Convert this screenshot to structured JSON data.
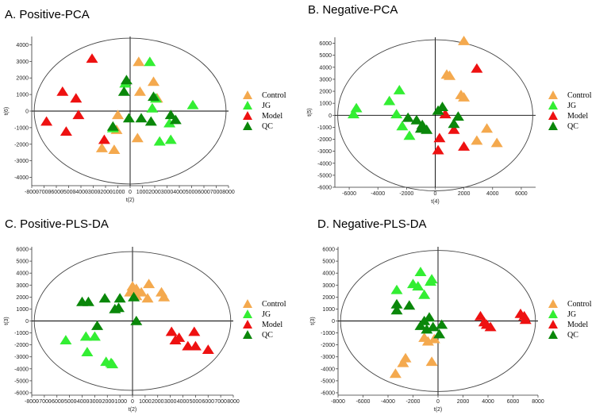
{
  "colors": {
    "Control": "#f4a94e",
    "JG": "#33ee33",
    "Model": "#ee1111",
    "QC": "#0a870a"
  },
  "chart_data": [
    {
      "type": "scatter",
      "title": "A. Positive-PCA",
      "xlabel": "t(2)",
      "ylabel": "t(6)",
      "xlim": [
        -8000,
        8000
      ],
      "ylim": [
        -4500,
        4500
      ],
      "xticks": [
        -8000,
        -7000,
        -6000,
        -5000,
        -4000,
        -3000,
        -2000,
        -1000,
        0,
        1000,
        2000,
        3000,
        4000,
        5000,
        6000,
        7000,
        8000
      ],
      "yticks": [
        4000,
        3000,
        2000,
        1000,
        0,
        -1000,
        -2000,
        -3000,
        -4000
      ],
      "ellipse": {
        "rx": 7800,
        "ry": 4400
      },
      "legend": [
        "Control",
        "JG",
        "Model",
        "QC"
      ],
      "series": [
        {
          "name": "Control",
          "points": [
            [
              700,
              2900
            ],
            [
              1900,
              1700
            ],
            [
              800,
              1100
            ],
            [
              2200,
              700
            ],
            [
              -1000,
              -300
            ],
            [
              -1100,
              -1200
            ],
            [
              600,
              -1700
            ],
            [
              -2300,
              -2300
            ],
            [
              -1300,
              -2400
            ]
          ]
        },
        {
          "name": "JG",
          "points": [
            [
              1600,
              2900
            ],
            [
              2100,
              700
            ],
            [
              1800,
              100
            ],
            [
              5100,
              300
            ],
            [
              3200,
              -800
            ],
            [
              2400,
              -1900
            ],
            [
              3300,
              -1800
            ],
            [
              -1400,
              -1100
            ],
            [
              -400,
              1600
            ]
          ]
        },
        {
          "name": "Model",
          "points": [
            [
              -3100,
              3100
            ],
            [
              -5500,
              1100
            ],
            [
              -4400,
              700
            ],
            [
              -4200,
              -300
            ],
            [
              -6800,
              -700
            ],
            [
              -5200,
              -1300
            ],
            [
              -2100,
              -1800
            ]
          ]
        },
        {
          "name": "QC",
          "points": [
            [
              -300,
              1800
            ],
            [
              -500,
              1100
            ],
            [
              1900,
              800
            ],
            [
              -100,
              -500
            ],
            [
              900,
              -500
            ],
            [
              1700,
              -700
            ],
            [
              3300,
              -300
            ],
            [
              3700,
              -600
            ],
            [
              -1400,
              -1000
            ]
          ]
        }
      ]
    },
    {
      "type": "scatter",
      "title": "B. Negative-PCA",
      "xlabel": "t(4)",
      "ylabel": "t(5)",
      "xlim": [
        -7000,
        7000
      ],
      "ylim": [
        -6000,
        6500
      ],
      "xticks": [
        -6000,
        -4000,
        -2000,
        0,
        2000,
        4000,
        6000
      ],
      "yticks": [
        6000,
        5000,
        4000,
        3000,
        2000,
        1000,
        0,
        -1000,
        -2000,
        -3000,
        -4000,
        -5000,
        -6000
      ],
      "ellipse": {
        "rx": 6800,
        "ry": 6300
      },
      "legend": [
        "Control",
        "JG",
        "Model",
        "QC"
      ],
      "series": [
        {
          "name": "Control",
          "points": [
            [
              2000,
              6100
            ],
            [
              800,
              3300
            ],
            [
              1000,
              3200
            ],
            [
              1800,
              1600
            ],
            [
              2000,
              1400
            ],
            [
              3600,
              -1200
            ],
            [
              2900,
              -2200
            ],
            [
              4300,
              -2400
            ]
          ]
        },
        {
          "name": "JG",
          "points": [
            [
              -5500,
              500
            ],
            [
              -5700,
              0
            ],
            [
              -3200,
              1100
            ],
            [
              -2500,
              2000
            ],
            [
              -2700,
              0
            ],
            [
              -2300,
              -1000
            ],
            [
              -1800,
              -1800
            ]
          ]
        },
        {
          "name": "Model",
          "points": [
            [
              2900,
              3800
            ],
            [
              300,
              -2000
            ],
            [
              200,
              -3000
            ],
            [
              2000,
              -2700
            ],
            [
              1300,
              -1300
            ],
            [
              700,
              0
            ]
          ]
        },
        {
          "name": "QC",
          "points": [
            [
              -1900,
              -300
            ],
            [
              -1300,
              -500
            ],
            [
              -900,
              -900
            ],
            [
              -600,
              -1300
            ],
            [
              -1000,
              -1200
            ],
            [
              200,
              300
            ],
            [
              500,
              600
            ],
            [
              1600,
              -200
            ],
            [
              1300,
              -800
            ]
          ]
        }
      ]
    },
    {
      "type": "scatter",
      "title": "C. Positive-PLS-DA",
      "xlabel": "t(2)",
      "ylabel": "t(3)",
      "xlim": [
        -8000,
        8000
      ],
      "ylim": [
        -6200,
        6200
      ],
      "xticks": [
        -8000,
        -7000,
        -6000,
        -5000,
        -4000,
        -3000,
        -2000,
        -1000,
        0,
        1000,
        2000,
        3000,
        4000,
        5000,
        6000,
        7000,
        8000
      ],
      "yticks": [
        6000,
        5000,
        4000,
        3000,
        2000,
        1000,
        0,
        -1000,
        -2000,
        -3000,
        -4000,
        -5000,
        -6000
      ],
      "ellipse": {
        "rx": 7800,
        "ry": 5800
      },
      "legend": [
        "Control",
        "JG",
        "Model",
        "QC"
      ],
      "series": [
        {
          "name": "Control",
          "points": [
            [
              0,
              2800
            ],
            [
              300,
              2600
            ],
            [
              1300,
              3000
            ],
            [
              700,
              2300
            ],
            [
              2300,
              2300
            ],
            [
              2500,
              1900
            ],
            [
              -200,
              2300
            ],
            [
              300,
              2000
            ],
            [
              1200,
              1800
            ]
          ]
        },
        {
          "name": "JG",
          "points": [
            [
              -5300,
              -1700
            ],
            [
              -3700,
              -1400
            ],
            [
              -3600,
              -2700
            ],
            [
              -3000,
              -1400
            ],
            [
              -2100,
              -3500
            ],
            [
              -1700,
              -3600
            ],
            [
              -1600,
              -3700
            ]
          ]
        },
        {
          "name": "Model",
          "points": [
            [
              3100,
              -1000
            ],
            [
              3400,
              -1700
            ],
            [
              4400,
              -2200
            ],
            [
              4900,
              -1000
            ],
            [
              5000,
              -2200
            ],
            [
              6000,
              -2500
            ],
            [
              3700,
              -1500
            ]
          ]
        },
        {
          "name": "QC",
          "points": [
            [
              -4000,
              1500
            ],
            [
              -3500,
              1500
            ],
            [
              -2200,
              1800
            ],
            [
              -1100,
              1000
            ],
            [
              -1400,
              900
            ],
            [
              -1000,
              1800
            ],
            [
              300,
              -100
            ],
            [
              -2800,
              -500
            ],
            [
              100,
              1900
            ]
          ]
        }
      ]
    },
    {
      "type": "scatter",
      "title": "D. Negative-PLS-DA",
      "xlabel": "t(2)",
      "ylabel": "t(3)",
      "xlim": [
        -8000,
        8000
      ],
      "ylim": [
        -6200,
        6200
      ],
      "xticks": [
        -8000,
        -6000,
        -4000,
        -2000,
        0,
        2000,
        4000,
        6000,
        8000
      ],
      "yticks": [
        6000,
        5000,
        4000,
        3000,
        2000,
        1000,
        0,
        -1000,
        -2000,
        -3000,
        -4000,
        -5000,
        -6000
      ],
      "ellipse": {
        "rx": 7800,
        "ry": 5900
      },
      "legend": [
        "Control",
        "JG",
        "Model",
        "QC"
      ],
      "series": [
        {
          "name": "Control",
          "points": [
            [
              -2600,
              -3200
            ],
            [
              -2800,
              -3600
            ],
            [
              -3400,
              -4500
            ],
            [
              -800,
              -1800
            ],
            [
              -300,
              -1600
            ],
            [
              -500,
              -3500
            ],
            [
              -1100,
              -1500
            ]
          ]
        },
        {
          "name": "JG",
          "points": [
            [
              -2000,
              3000
            ],
            [
              -1600,
              2800
            ],
            [
              -1400,
              4000
            ],
            [
              -1100,
              2100
            ],
            [
              -500,
              3400
            ],
            [
              -3300,
              2500
            ],
            [
              -600,
              3200
            ]
          ]
        },
        {
          "name": "Model",
          "points": [
            [
              3400,
              300
            ],
            [
              3700,
              -200
            ],
            [
              4200,
              -600
            ],
            [
              6600,
              500
            ],
            [
              7000,
              0
            ],
            [
              3900,
              -400
            ],
            [
              6900,
              300
            ]
          ]
        },
        {
          "name": "QC",
          "points": [
            [
              -3300,
              1300
            ],
            [
              -3300,
              800
            ],
            [
              -2300,
              1200
            ],
            [
              -1100,
              -100
            ],
            [
              -900,
              -800
            ],
            [
              -400,
              -600
            ],
            [
              100,
              -1200
            ],
            [
              -1400,
              -500
            ],
            [
              300,
              -400
            ],
            [
              -700,
              200
            ]
          ]
        }
      ]
    }
  ]
}
